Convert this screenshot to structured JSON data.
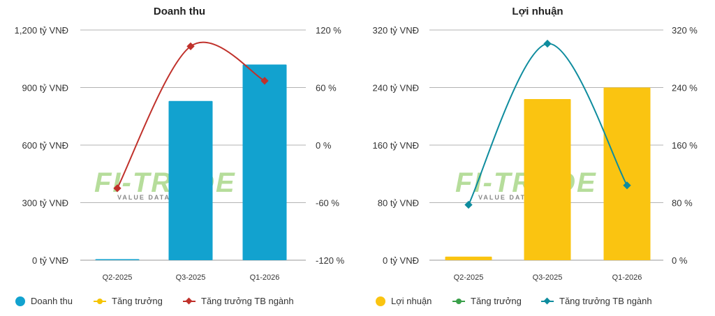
{
  "watermark": {
    "logo_text": "FI-TRADE",
    "tagline": "VALUE DATA · INVEST"
  },
  "chart_data": [
    {
      "type": "bar",
      "title": "Doanh thu",
      "categories": [
        "Q2-2025",
        "Q3-2025",
        "Q1-2026"
      ],
      "y_ticks": [
        "0 tỷ VNĐ",
        "300 tỷ VNĐ",
        "600 tỷ VNĐ",
        "900 tỷ VNĐ",
        "1,200 tỷ VNĐ"
      ],
      "y2_ticks": [
        "-120 %",
        "-60 %",
        "0 %",
        "60 %",
        "120 %"
      ],
      "ylim": [
        0,
        1200
      ],
      "y2lim": [
        -120,
        120
      ],
      "series": [
        {
          "name": "Doanh thu",
          "kind": "bar",
          "axis": "left",
          "color": "#12a2cf",
          "values": [
            3,
            830,
            1020
          ]
        },
        {
          "name": "Tăng trưởng",
          "kind": "point",
          "axis": "right",
          "color": "#f5c400",
          "values": [
            null,
            null,
            null
          ]
        },
        {
          "name": "Tăng trưởng TB ngành",
          "kind": "line",
          "axis": "right",
          "color": "#c0312b",
          "values": [
            -45,
            103,
            67
          ]
        }
      ],
      "legend_position": "bottom"
    },
    {
      "type": "bar",
      "title": "Lợi nhuận",
      "categories": [
        "Q2-2025",
        "Q3-2025",
        "Q1-2026"
      ],
      "y_ticks": [
        "0 tỷ VNĐ",
        "80 tỷ VNĐ",
        "160 tỷ VNĐ",
        "240 tỷ VNĐ",
        "320 tỷ VNĐ"
      ],
      "y2_ticks": [
        "0 %",
        "80 %",
        "160 %",
        "240 %",
        "320 %"
      ],
      "ylim": [
        0,
        320
      ],
      "y2lim": [
        0,
        320
      ],
      "series": [
        {
          "name": "Lợi nhuận",
          "kind": "bar",
          "axis": "left",
          "color": "#fac411",
          "values": [
            5,
            224,
            240
          ]
        },
        {
          "name": "Tăng trưởng",
          "kind": "point",
          "axis": "right",
          "color": "#3aa04a",
          "values": [
            null,
            null,
            null
          ]
        },
        {
          "name": "Tăng trưởng TB ngành",
          "kind": "line",
          "axis": "right",
          "color": "#0e8c9e",
          "values": [
            77,
            301,
            104
          ]
        }
      ],
      "legend_position": "bottom"
    }
  ]
}
